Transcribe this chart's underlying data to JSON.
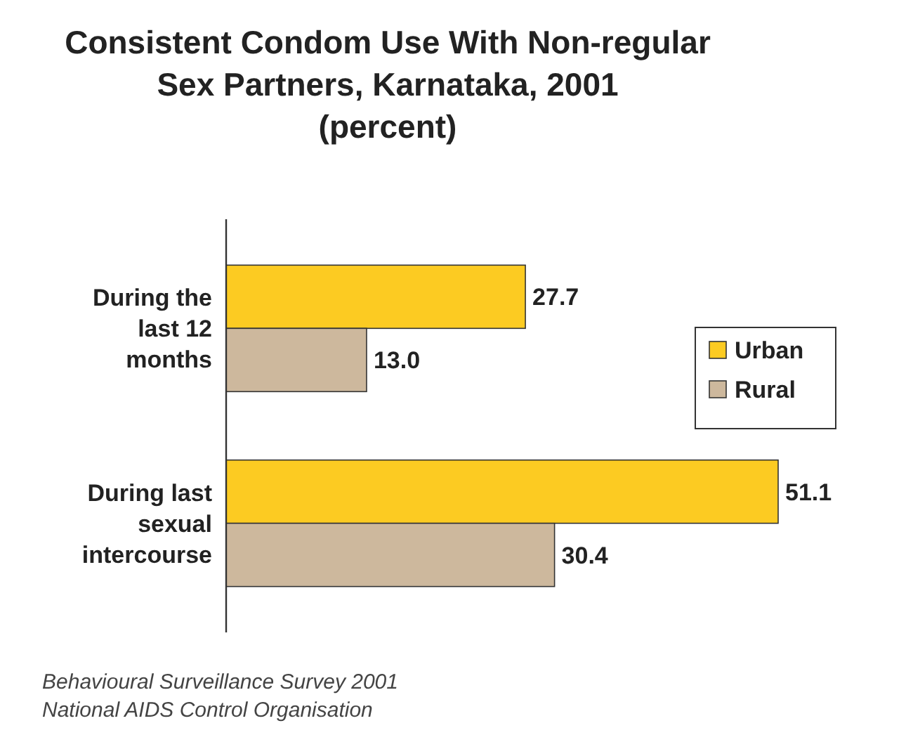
{
  "chart_data": {
    "type": "bar",
    "orientation": "horizontal",
    "title": "Consistent Condom Use With Non-regular Sex Partners, Karnataka, 2001 (percent)",
    "categories": [
      "During the last 12 months",
      "During last sexual intercourse"
    ],
    "series": [
      {
        "name": "Urban",
        "color": "#fccb22",
        "values": [
          27.7,
          51.1
        ],
        "value_labels": [
          "27.7",
          "51.1"
        ]
      },
      {
        "name": "Rural",
        "color": "#cdb89d",
        "values": [
          13.0,
          30.4
        ],
        "value_labels": [
          "13.0",
          "30.4"
        ]
      }
    ],
    "legend": "right",
    "annotations": [
      "Behavioural Surveillance Survey 2001",
      "National AIDS Control Organisation"
    ]
  }
}
